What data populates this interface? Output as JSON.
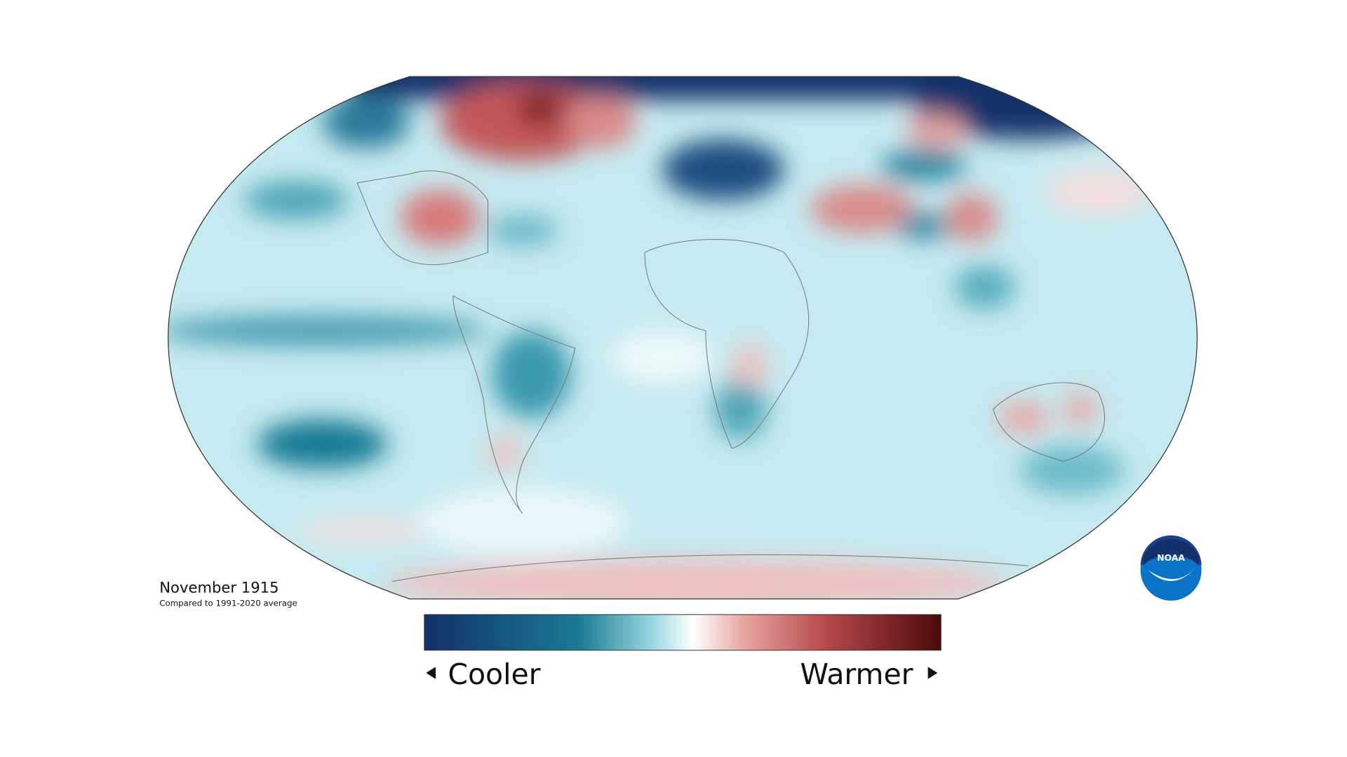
{
  "title": "November 1915",
  "subtitle": "Compared to 1991-2020 average",
  "legend": {
    "low_label": "Cooler",
    "high_label": "Warmer"
  },
  "logo": {
    "text": "NOAA"
  }
}
